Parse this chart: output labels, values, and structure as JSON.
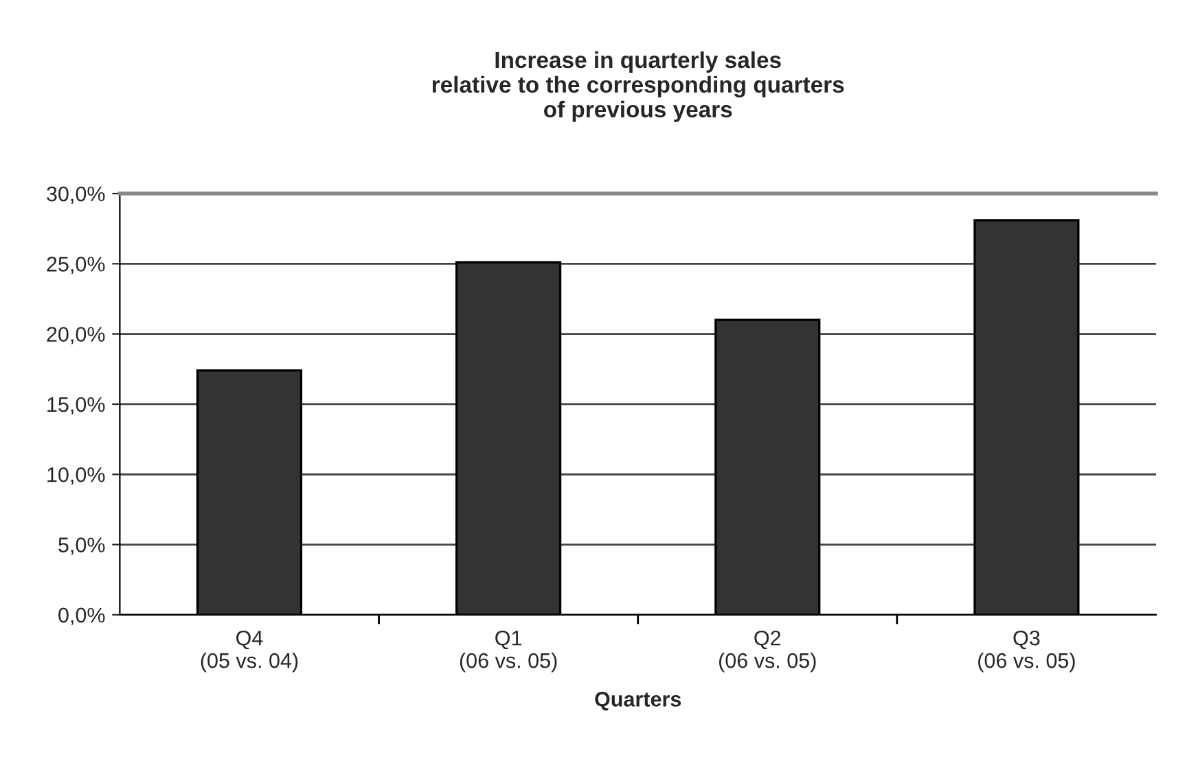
{
  "chart_data": {
    "type": "bar",
    "title": "Increase in quarterly sales\nrelative to the corresponding quarters\nof previous years",
    "xlabel": "Quarters",
    "categories": [
      "Q4\n(05 vs. 04)",
      "Q1\n(06 vs. 05)",
      "Q2\n(06 vs. 05)",
      "Q3\n(06 vs. 05)"
    ],
    "values": [
      17.4,
      25.1,
      21.0,
      28.1
    ],
    "color": "#333333",
    "ylim": [
      0,
      30
    ],
    "yticks": [
      {
        "value": 0,
        "label": "0,0%"
      },
      {
        "value": 5,
        "label": "5,0%"
      },
      {
        "value": 10,
        "label": "10,0%"
      },
      {
        "value": 15,
        "label": "15,0%"
      },
      {
        "value": 20,
        "label": "20,0%"
      },
      {
        "value": 25,
        "label": "25,0%"
      },
      {
        "value": 30,
        "label": "30,0%"
      }
    ],
    "grid": "y",
    "legend": false
  }
}
